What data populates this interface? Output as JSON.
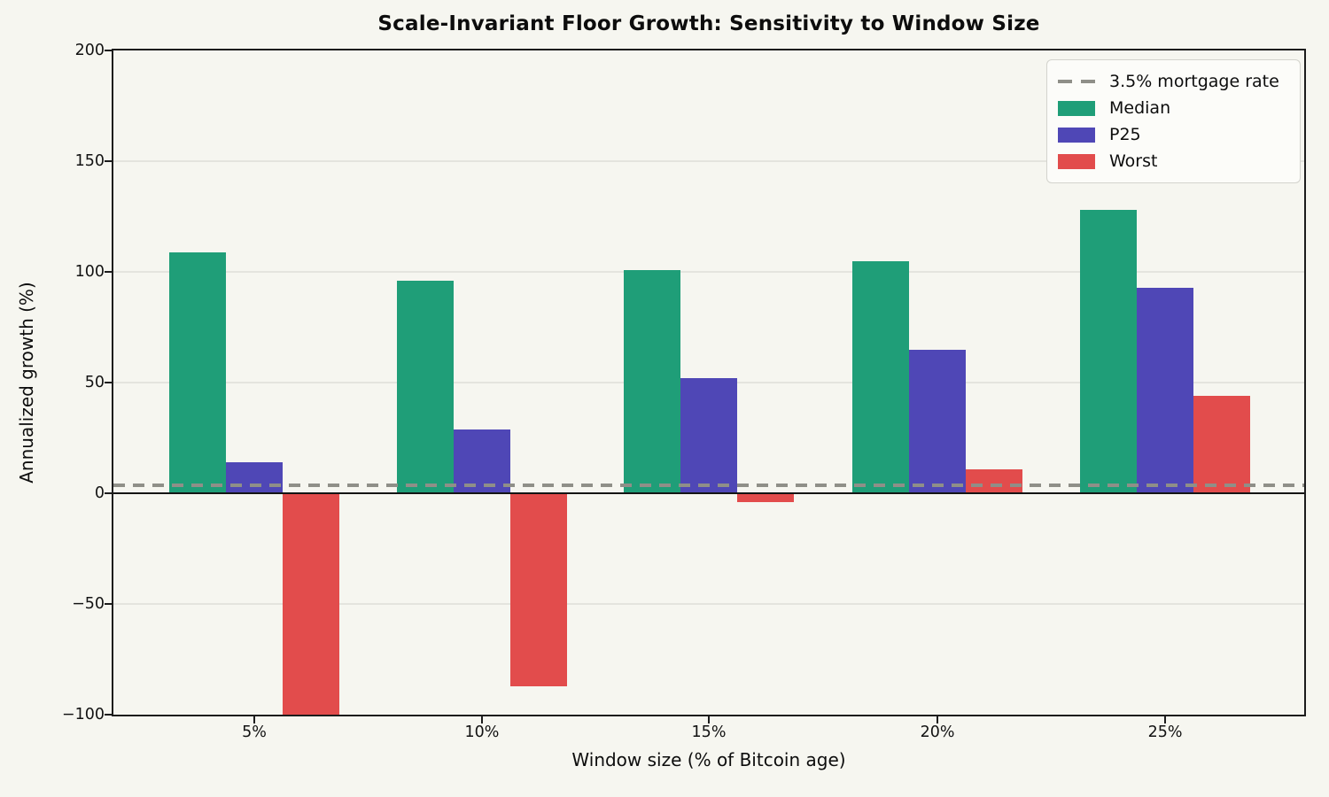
{
  "figure": {
    "background_color": "#f6f6f0",
    "title": "Scale-Invariant Floor Growth: Sensitivity to Window Size"
  },
  "chart_data": {
    "type": "bar",
    "title": "Scale-Invariant Floor Growth: Sensitivity to Window Size",
    "xlabel": "Window size (% of Bitcoin age)",
    "ylabel": "Annualized growth (%)",
    "categories": [
      "5%",
      "10%",
      "15%",
      "20%",
      "25%"
    ],
    "series": [
      {
        "name": "Median",
        "color": "#1f9e78",
        "values": [
          109,
          96,
          101,
          105,
          128
        ]
      },
      {
        "name": "P25",
        "color": "#4f47b6",
        "values": [
          14,
          29,
          52,
          65,
          93
        ]
      },
      {
        "name": "Worst",
        "color": "#e24c4c",
        "values": [
          -100,
          -87,
          -4,
          11,
          44
        ]
      }
    ],
    "reference_line": {
      "label": "3.5% mortgage rate",
      "value": 3.5,
      "color": "#8f8f88",
      "style": "dashed"
    },
    "zero_line": {
      "value": 0,
      "color": "#141414"
    },
    "ylim": [
      -100,
      200
    ],
    "yticks": [
      200,
      150,
      100,
      50,
      0,
      -50,
      -100
    ],
    "ytick_labels": [
      "200",
      "150",
      "100",
      "50",
      "0",
      "−50",
      "−100"
    ],
    "gridline_values": [
      150,
      100,
      50,
      0,
      -50
    ],
    "grid": "horizontal",
    "legend_position": "upper right",
    "note": "Worst bar at 5% is clipped at the -100 axis limit"
  },
  "legend": {
    "items": [
      {
        "label": "3.5% mortgage rate",
        "swatch": "dashed-line",
        "color": "#8f8f88"
      },
      {
        "label": "Median",
        "swatch": "patch",
        "color": "#1f9e78"
      },
      {
        "label": "P25",
        "swatch": "patch",
        "color": "#4f47b6"
      },
      {
        "label": "Worst",
        "swatch": "patch",
        "color": "#e24c4c"
      }
    ]
  }
}
